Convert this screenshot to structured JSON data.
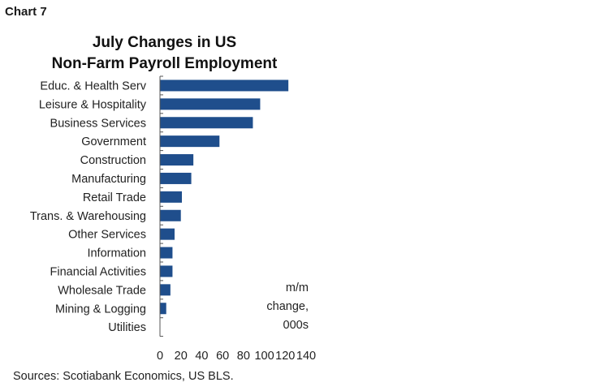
{
  "chart_label": "Chart 7",
  "chart_data": {
    "type": "bar",
    "orientation": "horizontal",
    "title_line1": "July Changes in US",
    "title_line2": "Non-Farm Payroll Employment",
    "categories": [
      "Educ. & Health Serv",
      "Leisure & Hospitality",
      "Business Services",
      "Government",
      "Construction",
      "Manufacturing",
      "Retail Trade",
      "Trans. & Warehousing",
      "Other Services",
      "Information",
      "Financial Activities",
      "Wholesale Trade",
      "Mining & Logging",
      "Utilities"
    ],
    "values": [
      123,
      96,
      89,
      57,
      32,
      30,
      21,
      20,
      14,
      12,
      12,
      10,
      6,
      0
    ],
    "xlim": [
      0,
      140
    ],
    "xticks": [
      "0",
      "20",
      "40",
      "60",
      "80",
      "100",
      "120",
      "140"
    ],
    "unit_label": [
      "m/m",
      "change,",
      "000s"
    ],
    "bar_color": "#1f4e8c"
  },
  "source": "Sources: Scotiabank Economics, US BLS."
}
